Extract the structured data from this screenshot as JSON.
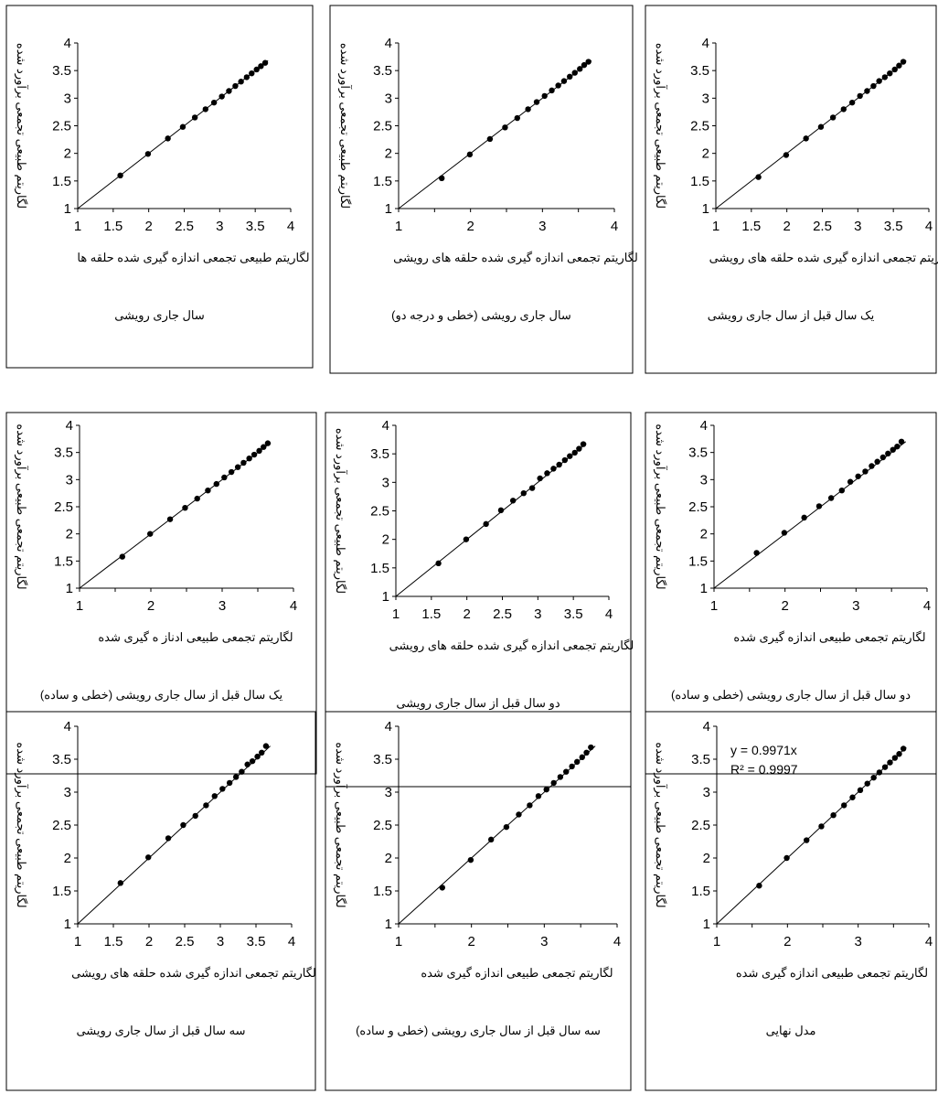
{
  "panels": [
    {
      "ylabel": "لگاریتم طبیعی تجمعی برآورد شده",
      "xlabel": "لگاریتم طبیعی تجمعی اندازه گیری شده حلقه ها",
      "caption": "سال جاری رویشی",
      "equation": "",
      "r2": "",
      "chart_data": {
        "type": "scatter",
        "xlim": [
          1,
          4
        ],
        "ylim": [
          1,
          4
        ],
        "xticks": [
          "1",
          "1.5",
          "2",
          "2.5",
          "3",
          "3.5",
          "4"
        ],
        "yticks": [
          "1",
          "1.5",
          "2",
          "2.5",
          "3",
          "3.5",
          "4"
        ],
        "series": [
          {
            "x": [
              1.6,
              1.99,
              2.27,
              2.48,
              2.65,
              2.8,
              2.92,
              3.03,
              3.13,
              3.22,
              3.3,
              3.38,
              3.45,
              3.52,
              3.58,
              3.64
            ],
            "y": [
              1.6,
              1.99,
              2.27,
              2.48,
              2.65,
              2.8,
              2.92,
              3.03,
              3.13,
              3.22,
              3.3,
              3.38,
              3.45,
              3.52,
              3.58,
              3.64
            ]
          }
        ],
        "trendline": {
          "from": 1,
          "to": 3.68,
          "slope": 1
        }
      }
    },
    {
      "ylabel": "لگاریتم طبیعی تجمعی برآورد شده",
      "xlabel": "لگاریتم تجمعی اندازه گیری شده حلقه های رویشی",
      "caption": "سال جاری رویشی (خطی و درجه دو)",
      "equation": "",
      "r2": "",
      "chart_data": {
        "type": "scatter",
        "xlim": [
          1,
          4
        ],
        "ylim": [
          1,
          4
        ],
        "xticks": [
          "1",
          "",
          "2",
          "",
          "3",
          "",
          "4"
        ],
        "yticks": [
          "1",
          "1.5",
          "2",
          "2.5",
          "3",
          "3.5",
          "4"
        ],
        "series": [
          {
            "x": [
              1.6,
              1.99,
              2.27,
              2.48,
              2.65,
              2.8,
              2.92,
              3.03,
              3.13,
              3.22,
              3.3,
              3.38,
              3.45,
              3.52,
              3.58,
              3.64
            ],
            "y": [
              1.55,
              1.98,
              2.26,
              2.47,
              2.64,
              2.8,
              2.93,
              3.04,
              3.14,
              3.23,
              3.31,
              3.39,
              3.46,
              3.53,
              3.6,
              3.66
            ]
          }
        ],
        "trendline": {
          "from": 1,
          "to": 3.68,
          "slope": 1
        }
      }
    },
    {
      "ylabel": "لگاریتم طبیعی تجمعی برآورد شده",
      "xlabel": "لگاریتم تجمعی اندازه گیری شده حلقه های رویشی",
      "caption": "یک سال قبل از سال جاری رویشی",
      "equation": "",
      "r2": "",
      "chart_data": {
        "type": "scatter",
        "xlim": [
          1,
          4
        ],
        "ylim": [
          1,
          4
        ],
        "xticks": [
          "1",
          "1.5",
          "2",
          "2.5",
          "3",
          "3.5",
          "4"
        ],
        "yticks": [
          "1",
          "1.5",
          "2",
          "2.5",
          "3",
          "3.5",
          "4"
        ],
        "series": [
          {
            "x": [
              1.6,
              1.99,
              2.27,
              2.48,
              2.65,
              2.8,
              2.92,
              3.03,
              3.13,
              3.22,
              3.3,
              3.38,
              3.45,
              3.52,
              3.58,
              3.64
            ],
            "y": [
              1.57,
              1.97,
              2.27,
              2.48,
              2.65,
              2.8,
              2.92,
              3.04,
              3.13,
              3.22,
              3.31,
              3.38,
              3.45,
              3.52,
              3.59,
              3.66
            ]
          }
        ],
        "trendline": {
          "from": 1,
          "to": 3.68,
          "slope": 1
        }
      }
    },
    {
      "ylabel": "لگاریتم تجمعی طبیعی برآورد شده",
      "xlabel": "لگاریتم تجمعی طبیعی ادناز ه گیری شده",
      "caption": "یک سال قبل از سال جاری رویشی (خطی و ساده)",
      "equation": "",
      "r2": "",
      "chart_data": {
        "type": "scatter",
        "xlim": [
          1,
          4
        ],
        "ylim": [
          1,
          4
        ],
        "xticks": [
          "1",
          "",
          "2",
          "",
          "3",
          "",
          "4"
        ],
        "yticks": [
          "1",
          "1.5",
          "2",
          "2.5",
          "3",
          "3.5",
          "4"
        ],
        "series": [
          {
            "x": [
              1.6,
              1.99,
              2.27,
              2.48,
              2.65,
              2.8,
              2.92,
              3.03,
              3.13,
              3.22,
              3.3,
              3.38,
              3.45,
              3.52,
              3.58,
              3.64
            ],
            "y": [
              1.58,
              2.0,
              2.27,
              2.48,
              2.65,
              2.8,
              2.92,
              3.04,
              3.14,
              3.23,
              3.31,
              3.39,
              3.46,
              3.53,
              3.6,
              3.67
            ]
          }
        ],
        "trendline": {
          "from": 1,
          "to": 3.68,
          "slope": 1
        }
      }
    },
    {
      "ylabel": "لگاریتم طبیعی تجمعی برآورد شده",
      "xlabel": "لگاریتم تجمعی اندازه گیری شده حلقه های رویشی",
      "caption": "دو سال قبل از سال جاری رویشی",
      "equation": "",
      "r2": "",
      "chart_data": {
        "type": "scatter",
        "xlim": [
          1,
          4
        ],
        "ylim": [
          1,
          4
        ],
        "xticks": [
          "1",
          "1.5",
          "2",
          "2.5",
          "3",
          "3.5",
          "4"
        ],
        "yticks": [
          "1",
          "1.5",
          "2",
          "2.5",
          "3",
          "3.5",
          "4"
        ],
        "series": [
          {
            "x": [
              1.6,
              1.99,
              2.27,
              2.48,
              2.65,
              2.8,
              2.92,
              3.03,
              3.13,
              3.22,
              3.3,
              3.38,
              3.45,
              3.52,
              3.58,
              3.64
            ],
            "y": [
              1.58,
              2.0,
              2.27,
              2.51,
              2.68,
              2.81,
              2.9,
              3.07,
              3.16,
              3.24,
              3.31,
              3.39,
              3.46,
              3.52,
              3.59,
              3.67
            ]
          }
        ],
        "trendline": {
          "from": 1,
          "to": 3.68,
          "slope": 1
        }
      }
    },
    {
      "ylabel": "لگاریتم تجمعی طبیعی برآورد شده",
      "xlabel": "لگاریتم تجمعی طبیعی اندازه گیری شده",
      "caption": "دو سال قبل از سال جاری رویشی (خطی و ساده)",
      "equation": "",
      "r2": "",
      "chart_data": {
        "type": "scatter",
        "xlim": [
          1,
          4
        ],
        "ylim": [
          1,
          4
        ],
        "xticks": [
          "1",
          "",
          "2",
          "",
          "3",
          "",
          "4"
        ],
        "yticks": [
          "1",
          "1.5",
          "2",
          "2.5",
          "3",
          "3.5",
          "4"
        ],
        "series": [
          {
            "x": [
              1.6,
              1.99,
              2.27,
              2.48,
              2.65,
              2.8,
              2.92,
              3.03,
              3.13,
              3.22,
              3.3,
              3.38,
              3.45,
              3.52,
              3.58,
              3.64
            ],
            "y": [
              1.65,
              2.02,
              2.3,
              2.51,
              2.66,
              2.8,
              2.96,
              3.06,
              3.15,
              3.25,
              3.33,
              3.41,
              3.48,
              3.55,
              3.61,
              3.7
            ]
          }
        ],
        "trendline": {
          "from": 1,
          "to": 3.7,
          "slope": 1
        }
      }
    },
    {
      "ylabel": "لگاریتم طبیعی تجمعی برآورد شده",
      "xlabel": "لگاریتم تجمعی اندازه گیری شده حلقه های رویشی",
      "caption": "سه سال قبل از سال جاری رویشی",
      "equation": "",
      "r2": "",
      "chart_data": {
        "type": "scatter",
        "xlim": [
          1,
          4
        ],
        "ylim": [
          1,
          4
        ],
        "xticks": [
          "1",
          "1.5",
          "2",
          "2.5",
          "3",
          "3.5",
          "4"
        ],
        "yticks": [
          "1",
          "1.5",
          "2",
          "2.5",
          "3",
          "3.5",
          "4"
        ],
        "series": [
          {
            "x": [
              1.6,
              1.99,
              2.27,
              2.48,
              2.65,
              2.8,
              2.92,
              3.03,
              3.13,
              3.22,
              3.3,
              3.38,
              3.45,
              3.52,
              3.58,
              3.64
            ],
            "y": [
              1.62,
              2.01,
              2.3,
              2.5,
              2.64,
              2.8,
              2.94,
              3.05,
              3.14,
              3.23,
              3.31,
              3.42,
              3.47,
              3.54,
              3.6,
              3.7
            ]
          }
        ],
        "trendline": {
          "from": 1,
          "to": 3.7,
          "slope": 1
        }
      }
    },
    {
      "ylabel": "لگاریتم تجمعی طبیعی برآورد شده",
      "xlabel": "لگاریتم تجمعی طبیعی اندازه گیری شده",
      "caption": "سه سال قبل از سال جاری رویشی (خطی و ساده)",
      "equation": "",
      "r2": "",
      "chart_data": {
        "type": "scatter",
        "xlim": [
          1,
          4
        ],
        "ylim": [
          1,
          4
        ],
        "xticks": [
          "1",
          "",
          "2",
          "",
          "3",
          "",
          "4"
        ],
        "yticks": [
          "1",
          "1.5",
          "2",
          "2.5",
          "3",
          "3.5",
          "4"
        ],
        "series": [
          {
            "x": [
              1.6,
              1.99,
              2.27,
              2.48,
              2.65,
              2.8,
              2.92,
              3.03,
              3.13,
              3.22,
              3.3,
              3.38,
              3.45,
              3.52,
              3.58,
              3.64
            ],
            "y": [
              1.55,
              1.97,
              2.28,
              2.47,
              2.66,
              2.8,
              2.94,
              3.04,
              3.14,
              3.23,
              3.31,
              3.39,
              3.46,
              3.53,
              3.6,
              3.68
            ]
          }
        ],
        "trendline": {
          "from": 1,
          "to": 3.7,
          "slope": 1
        }
      }
    },
    {
      "ylabel": "لگاریتم تجمعی طبیعی برآورد شده",
      "xlabel": "لگاریتم تجمعی طبیعی اندازه گیری شده",
      "caption": "مدل نهایی",
      "equation": "y = 0.9971x",
      "r2": "R² = 0.9997",
      "chart_data": {
        "type": "scatter",
        "xlim": [
          1,
          4
        ],
        "ylim": [
          1,
          4
        ],
        "xticks": [
          "1",
          "",
          "2",
          "",
          "3",
          "",
          "4"
        ],
        "yticks": [
          "1",
          "1.5",
          "2",
          "2.5",
          "3",
          "3.5",
          "4"
        ],
        "series": [
          {
            "x": [
              1.6,
              1.99,
              2.27,
              2.48,
              2.65,
              2.8,
              2.92,
              3.03,
              3.13,
              3.22,
              3.3,
              3.38,
              3.45,
              3.52,
              3.58,
              3.64
            ],
            "y": [
              1.58,
              2.0,
              2.27,
              2.48,
              2.65,
              2.8,
              2.92,
              3.03,
              3.13,
              3.22,
              3.3,
              3.38,
              3.45,
              3.52,
              3.58,
              3.66
            ]
          }
        ],
        "trendline": {
          "from": 1,
          "to": 3.68,
          "slope": 1
        }
      }
    }
  ]
}
